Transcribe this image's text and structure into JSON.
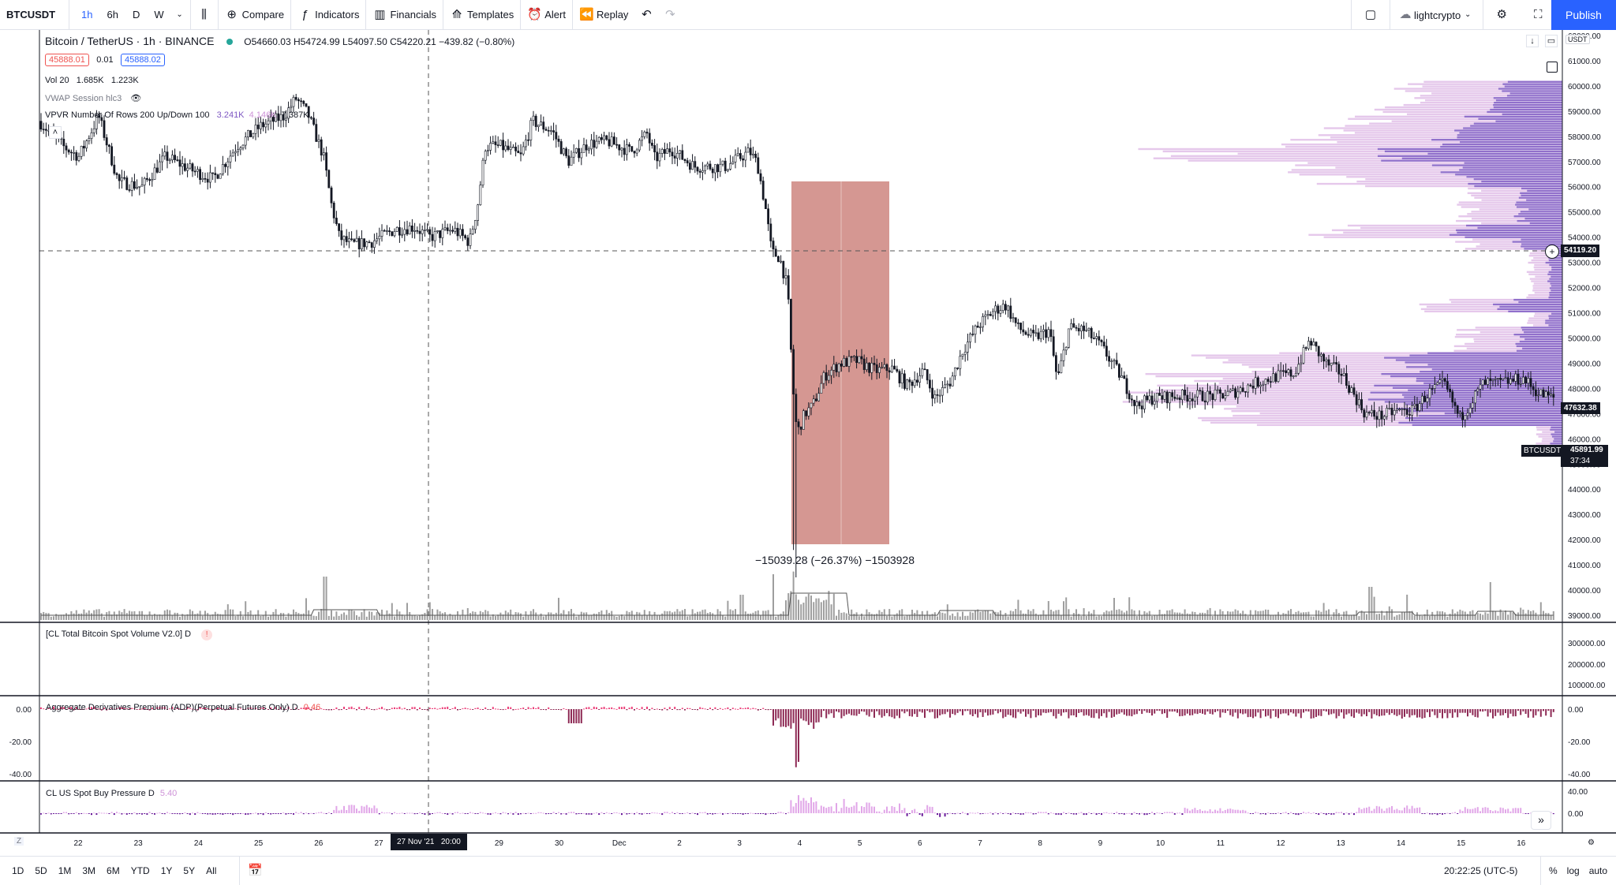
{
  "toolbar": {
    "symbol": "BTCUSDT",
    "timeframes": [
      "1h",
      "6h",
      "D",
      "W"
    ],
    "active_timeframe": "1h",
    "compare": "Compare",
    "indicators": "Indicators",
    "financials": "Financials",
    "templates": "Templates",
    "alert": "Alert",
    "replay": "Replay",
    "layout_name": "lightcrypto",
    "publish": "Publish"
  },
  "legend": {
    "title": "Bitcoin / TetherUS · 1h · BINANCE",
    "ohlc": "O54660.03  H54724.99  L54097.50  C54220.21  −439.82 (−0.80%)",
    "sell_price": "45888.01",
    "spread": "0.01",
    "buy_price": "45888.02",
    "vol_label": "Vol 20",
    "vol_v1": "1.685K",
    "vol_v2": "1.223K",
    "vwap": "VWAP Session hlc3",
    "vpvr": "VPVR Number Of Rows 200 Up/Down 100",
    "vpvr_v1": "3.241K",
    "vpvr_v2": "4.146K",
    "vpvr_v3": "7.387K"
  },
  "measure": {
    "text": "−15039.28 (−26.37%) −1503928"
  },
  "price_axis": {
    "currency": "USDT",
    "ticks": [
      "62000.00",
      "61000.00",
      "60000.00",
      "59000.00",
      "58000.00",
      "57000.00",
      "56000.00",
      "55000.00",
      "54000.00",
      "53000.00",
      "52000.00",
      "51000.00",
      "50000.00",
      "49000.00",
      "48000.00",
      "47000.00",
      "46000.00",
      "45000.00",
      "44000.00",
      "43000.00",
      "42000.00",
      "41000.00",
      "40000.00",
      "39000.00"
    ],
    "crosshair_price": "54119.20",
    "last_price": "47632.38",
    "symbol_tag": "BTCUSDT",
    "current_price": "45891.99",
    "countdown": "37:34"
  },
  "panes": {
    "spot_volume": {
      "label": "[CL Total Bitcoin Spot Volume V2.0] D",
      "ticks": [
        "300000.00",
        "200000.00",
        "100000.00"
      ]
    },
    "adp": {
      "label": "Aggregate Derivatives Premium (ADP)(Perpetual Futures Only) D",
      "value": "0.46",
      "ticks": [
        "0.00",
        "-20.00",
        "-40.00"
      ]
    },
    "buy_pressure": {
      "label": "CL US Spot Buy Pressure D",
      "value": "5.40",
      "ticks": [
        "40.00",
        "0.00"
      ]
    }
  },
  "time_axis": {
    "labels": [
      "22",
      "23",
      "24",
      "25",
      "26",
      "27",
      "28",
      "29",
      "30",
      "Dec",
      "2",
      "3",
      "4",
      "5",
      "6",
      "7",
      "8",
      "9",
      "10",
      "11",
      "12",
      "13",
      "14",
      "15",
      "16"
    ],
    "crosshair_time": "27 Nov '21   20:00"
  },
  "bottom": {
    "ranges": [
      "1D",
      "5D",
      "1M",
      "3M",
      "6M",
      "YTD",
      "1Y",
      "5Y",
      "All"
    ],
    "clock": "20:22:25 (UTC-5)",
    "percent": "%",
    "log": "log",
    "auto": "auto"
  },
  "colors": {
    "accent": "#2962ff",
    "vpvr_up": "#7e57c2",
    "vpvr_down": "#e1bee7",
    "measure": "#d4968f",
    "adp": "#b2456e"
  }
}
